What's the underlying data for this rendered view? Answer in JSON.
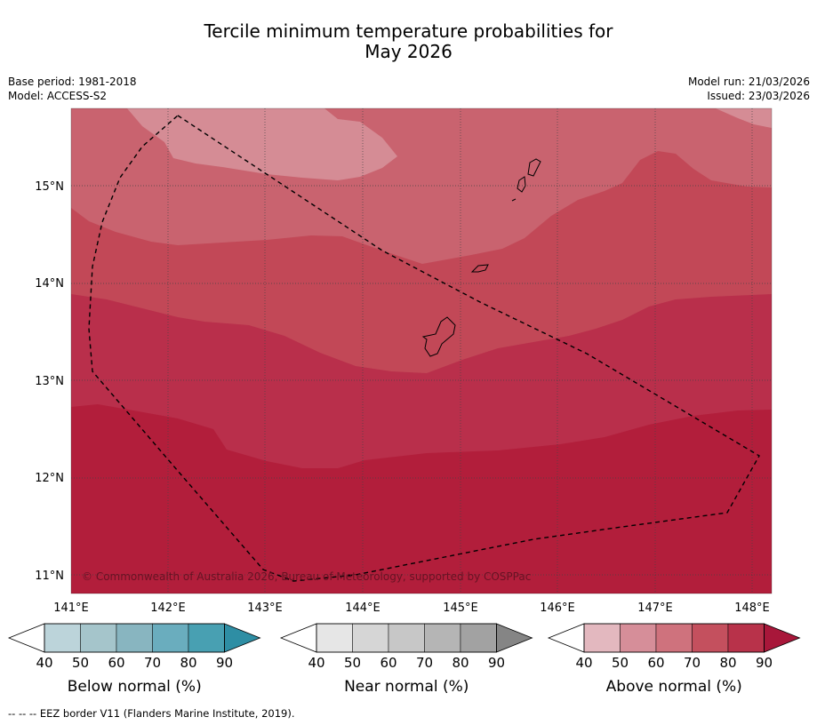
{
  "header": {
    "title_line1": "Tercile minimum temperature probabilities for",
    "title_line2": "May 2026",
    "base_period": "Base period: 1981-2018",
    "model": "Model: ACCESS-S2",
    "model_run": "Model run: 21/03/2026",
    "issued": "Issued: 23/03/2026"
  },
  "map": {
    "lat_labels": [
      "15°N",
      "14°N",
      "13°N",
      "12°N",
      "11°N"
    ],
    "lon_labels": [
      "141°E",
      "142°E",
      "143°E",
      "144°E",
      "145°E",
      "146°E",
      "147°E",
      "148°E"
    ],
    "copyright": "© Commonwealth of Australia 2026, Bureau of Meteorology, supported by COSPPac",
    "probability_bands": [
      "50-60",
      "60-70",
      "70-80",
      "80-90",
      "90+"
    ]
  },
  "legends": [
    {
      "title": "Below normal (%)",
      "ticks": [
        "40",
        "50",
        "60",
        "70",
        "80",
        "90"
      ],
      "colors": [
        "#bcd4da",
        "#a5c5cb",
        "#88b5c0",
        "#6aadbe",
        "#48a0b2",
        "#2e8ea4"
      ]
    },
    {
      "title": "Near normal (%)",
      "ticks": [
        "40",
        "50",
        "60",
        "70",
        "80",
        "90"
      ],
      "colors": [
        "#e6e6e6",
        "#d6d6d6",
        "#c7c7c7",
        "#b5b5b5",
        "#a2a2a2",
        "#858585"
      ]
    },
    {
      "title": "Above normal (%)",
      "ticks": [
        "40",
        "50",
        "60",
        "70",
        "80",
        "90"
      ],
      "colors": [
        "#e3b8bf",
        "#d68e99",
        "#cf727d",
        "#c4505e",
        "#b8324a",
        "#a8173a"
      ]
    }
  ],
  "footer": {
    "eez_note": "--  --  -- EEZ border V11 (Flanders Marine Institute, 2019)."
  }
}
